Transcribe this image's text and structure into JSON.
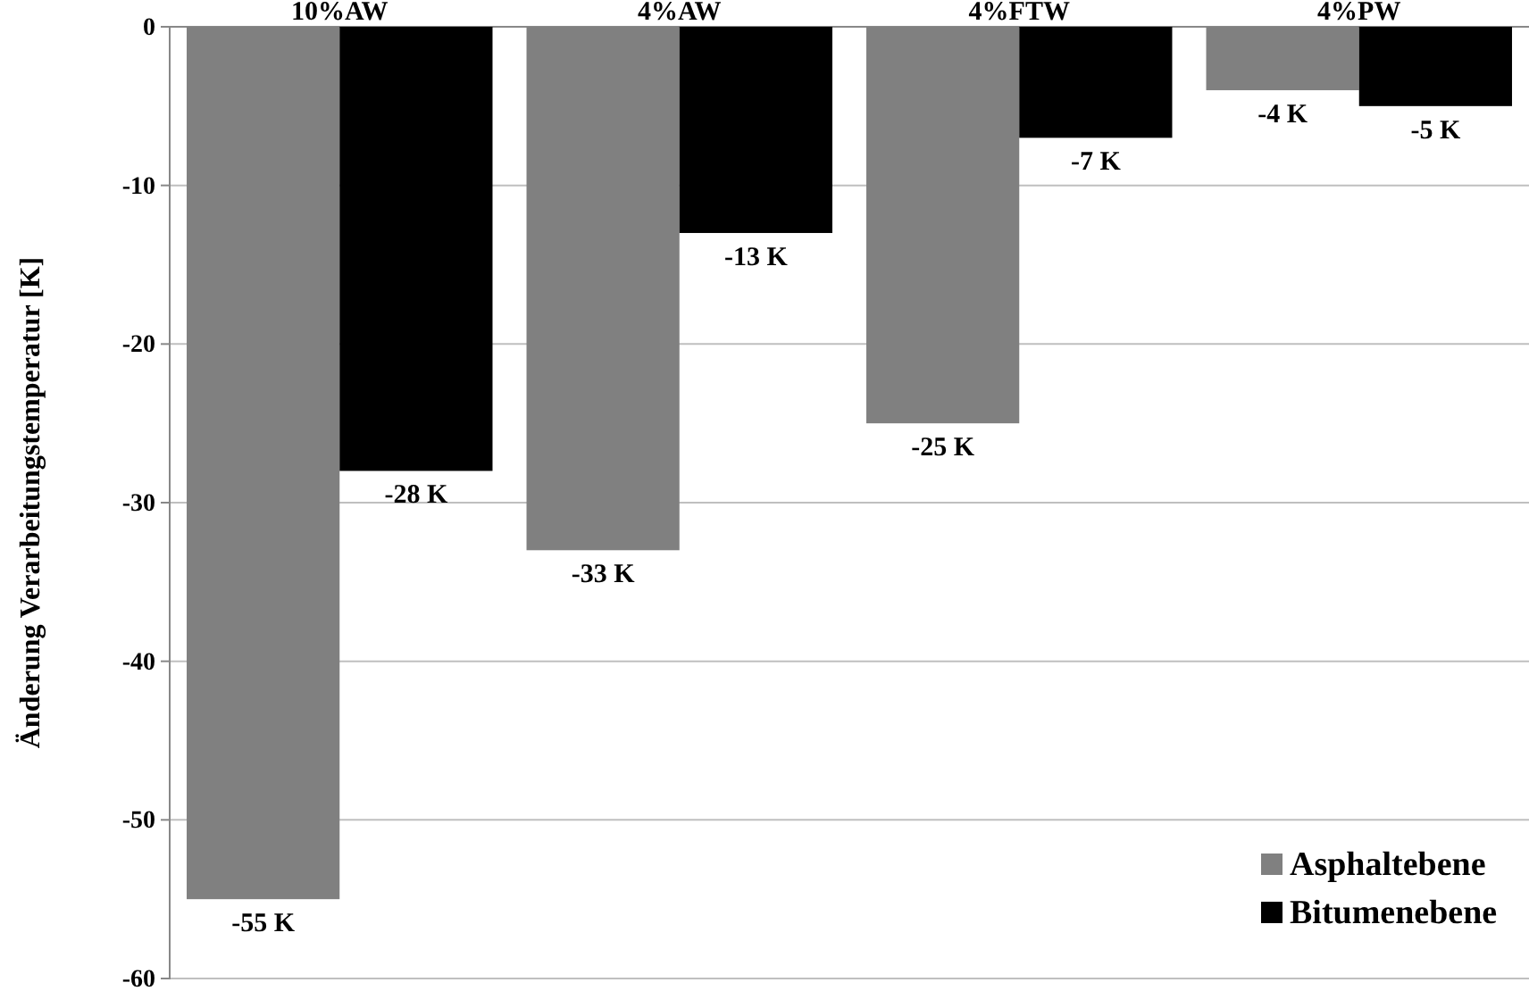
{
  "chart_data": {
    "type": "bar",
    "ylabel": "Änderung Verarbeitungstemperatur [K]",
    "categories": [
      "10%AW",
      "4%AW",
      "4%FTW",
      "4%PW"
    ],
    "series": [
      {
        "name": "Asphaltebene",
        "color": "#808080",
        "values": [
          -55,
          -33,
          -25,
          -4
        ],
        "value_labels": [
          "-55 K",
          "-33 K",
          "-25 K",
          "-4 K"
        ]
      },
      {
        "name": "Bitumenebene",
        "color": "#000000",
        "values": [
          -28,
          -13,
          -7,
          -5
        ],
        "value_labels": [
          "-28 K",
          "-13 K",
          "-7 K",
          "-5 K"
        ]
      }
    ],
    "ylim": [
      -60,
      0
    ],
    "yticks": [
      -60,
      -50,
      -40,
      -30,
      -20,
      -10,
      0
    ],
    "grid": "y",
    "legend": "bottom right"
  }
}
